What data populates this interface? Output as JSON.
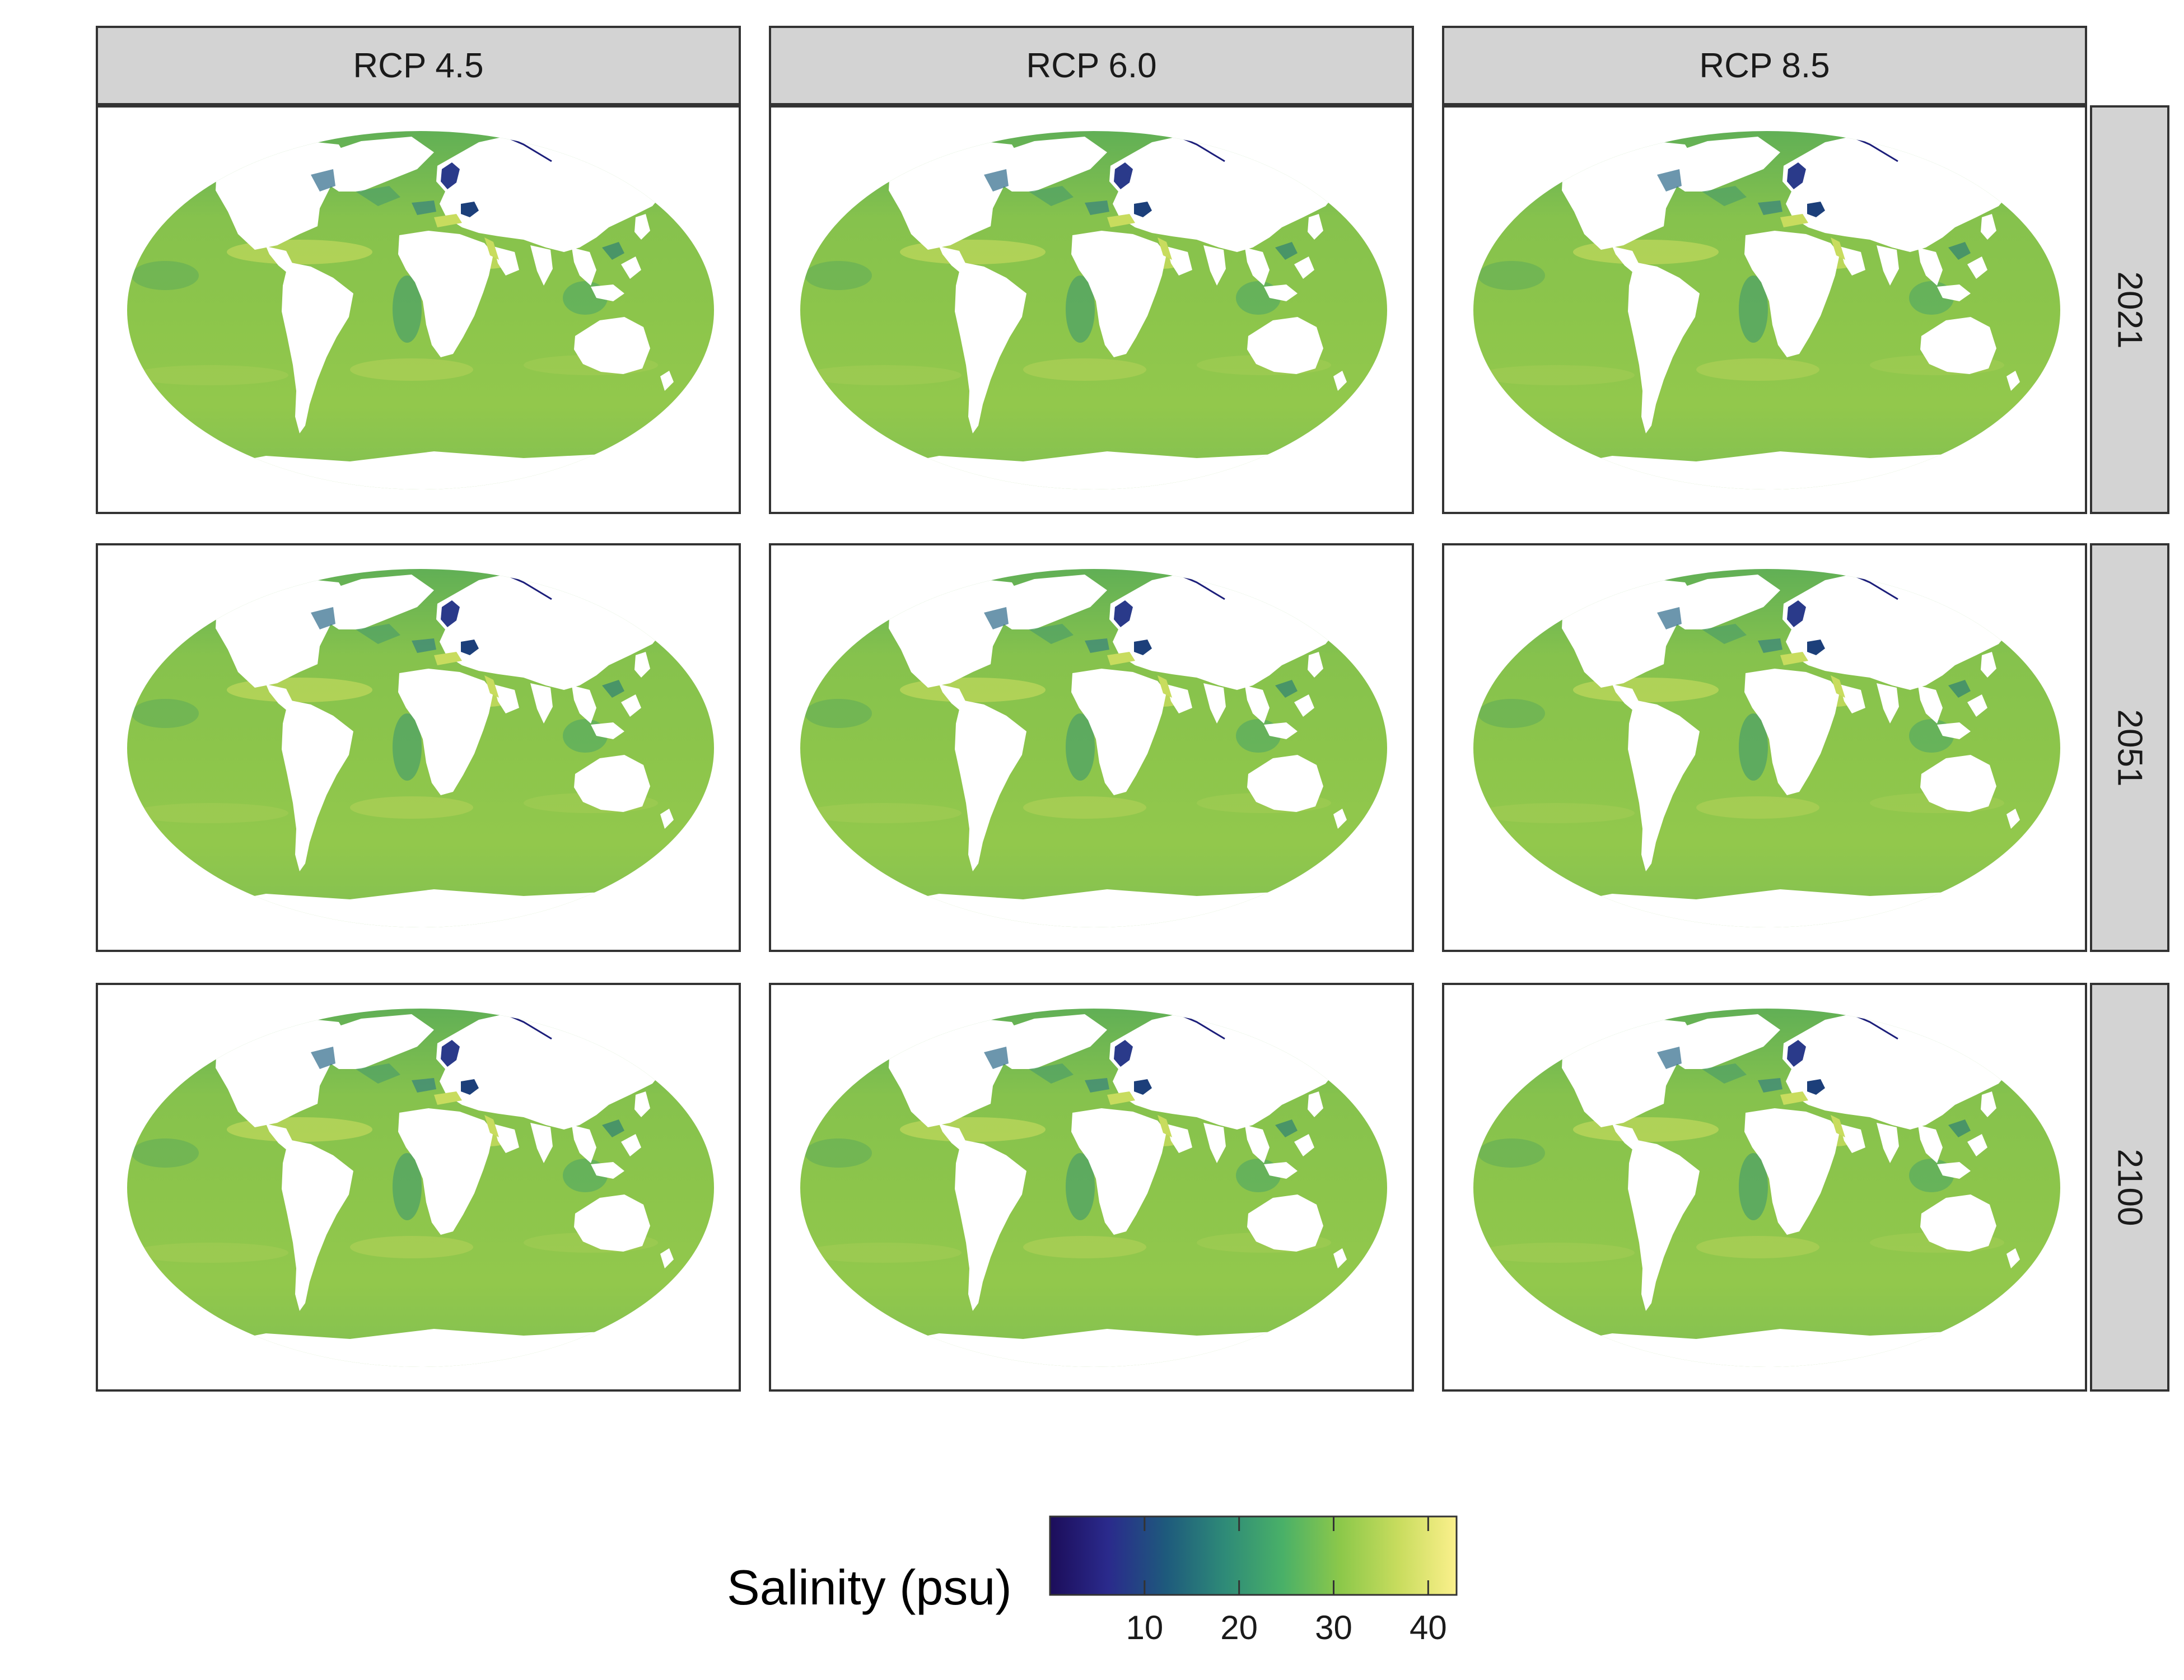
{
  "facets": {
    "columns": [
      {
        "label": "RCP 4.5"
      },
      {
        "label": "RCP 6.0"
      },
      {
        "label": "RCP 8.5"
      }
    ],
    "rows": [
      {
        "label": "2021"
      },
      {
        "label": "2051"
      },
      {
        "label": "2100"
      }
    ]
  },
  "legend": {
    "title": "Salinity (psu)",
    "ticks": [
      {
        "value": 10,
        "label": "10"
      },
      {
        "value": 20,
        "label": "20"
      },
      {
        "value": 30,
        "label": "30"
      },
      {
        "value": 40,
        "label": "40"
      }
    ],
    "range": [
      0,
      43
    ],
    "colormap": "viridis-like",
    "stops": [
      "#1c0d5a",
      "#2a2a8c",
      "#1e5a7c",
      "#2e8a78",
      "#49b068",
      "#8cc84a",
      "#c8dc5e",
      "#fbf08c"
    ]
  },
  "map": {
    "ocean_color": "#86c24d",
    "land_color": "#ffffff"
  }
}
